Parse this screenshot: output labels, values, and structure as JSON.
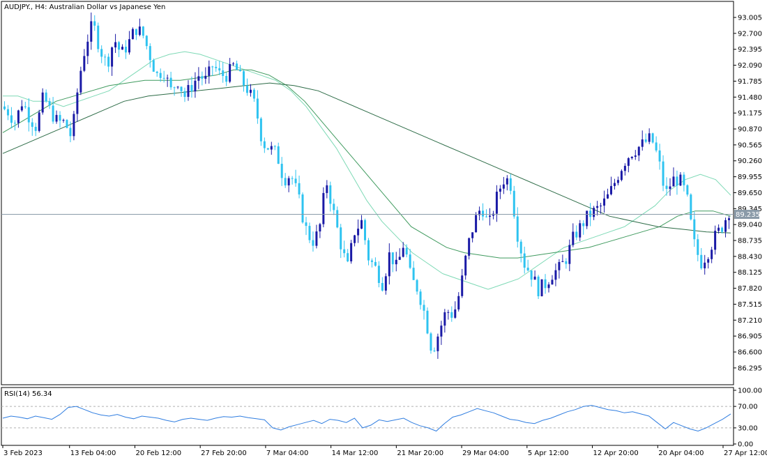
{
  "chart_data": [
    {
      "type": "candlestick",
      "title": "AUDJPY., H4:  Australian Dollar vs Japanese Yen",
      "ylim": [
        86.0,
        93.1
      ],
      "y_ticks": [
        "93.005",
        "92.700",
        "92.395",
        "92.090",
        "91.785",
        "91.480",
        "91.175",
        "90.870",
        "90.565",
        "90.260",
        "89.955",
        "89.650",
        "89.345",
        "89.040",
        "88.735",
        "88.430",
        "88.125",
        "87.820",
        "87.515",
        "87.210",
        "86.905",
        "86.600",
        "86.295"
      ],
      "current_price": "89.235",
      "x_ticks": [
        "3 Feb 2023",
        "13 Feb 04:00",
        "20 Feb 12:00",
        "27 Feb 20:00",
        "7 Mar 04:00",
        "14 Mar 12:00",
        "21 Mar 20:00",
        "29 Mar 04:00",
        "5 Apr 12:00",
        "12 Apr 20:00",
        "20 Apr 04:00",
        "27 Apr 12:00"
      ],
      "close_path": [
        91.3,
        91.2,
        91.0,
        91.4,
        91.1,
        90.9,
        91.5,
        91.2,
        91.0,
        91.0,
        90.7,
        91.8,
        92.5,
        92.9,
        92.4,
        92.1,
        92.6,
        92.3,
        92.5,
        92.8,
        92.7,
        92.3,
        91.9,
        92.0,
        91.6,
        91.8,
        91.5,
        91.7,
        91.9,
        91.8,
        92.1,
        91.9,
        91.9,
        92.1,
        91.8,
        91.6,
        91.3,
        90.6,
        90.5,
        90.4,
        89.9,
        90.0,
        89.6,
        89.0,
        88.7,
        88.9,
        89.9,
        89.3,
        88.7,
        88.2,
        88.9,
        89.1,
        88.4,
        88.2,
        87.9,
        88.5,
        88.2,
        88.7,
        88.0,
        87.8,
        87.3,
        86.6,
        87.0,
        87.4,
        87.3,
        87.8,
        88.6,
        89.1,
        89.4,
        89.0,
        89.5,
        89.9,
        89.9,
        88.9,
        88.3,
        88.1,
        87.8,
        87.9,
        88.1,
        88.2,
        88.4,
        88.8,
        89.0,
        89.2,
        89.3,
        89.4,
        89.6,
        89.9,
        90.2,
        90.4,
        90.5,
        90.6,
        90.7,
        90.3,
        89.6,
        89.9,
        89.9,
        89.6,
        88.7,
        88.3,
        88.5,
        88.8,
        89.0,
        89.3
      ],
      "series": [
        {
          "name": "",
          "color": "#7dd9b5",
          "values": [
            91.5,
            91.5,
            91.4,
            91.4,
            91.3,
            91.4,
            91.5,
            91.6,
            91.8,
            92.0,
            92.2,
            92.3,
            92.35,
            92.3,
            92.2,
            92.1,
            92.0,
            91.9,
            91.8,
            91.6,
            91.3,
            90.9,
            90.5,
            90.0,
            89.5,
            89.1,
            88.8,
            88.5,
            88.3,
            88.1,
            88.0,
            87.9,
            87.8,
            87.9,
            88.0,
            88.2,
            88.4,
            88.6,
            88.7,
            88.8,
            88.9,
            89.0,
            89.2,
            89.4,
            89.7,
            89.9,
            90.0,
            89.9,
            89.6
          ]
        },
        {
          "name": "",
          "color": "#3f9a5e",
          "values": [
            90.8,
            91.0,
            91.2,
            91.4,
            91.5,
            91.6,
            91.7,
            91.75,
            91.8,
            91.8,
            91.8,
            91.85,
            91.9,
            92.0,
            92.0,
            91.9,
            91.7,
            91.4,
            91.0,
            90.6,
            90.2,
            89.8,
            89.4,
            89.0,
            88.8,
            88.6,
            88.5,
            88.45,
            88.4,
            88.4,
            88.45,
            88.5,
            88.55,
            88.6,
            88.7,
            88.8,
            88.9,
            89.0,
            89.2,
            89.3,
            89.3,
            89.2
          ]
        },
        {
          "name": "",
          "color": "#2c6b46",
          "values": [
            90.4,
            90.6,
            90.8,
            91.0,
            91.2,
            91.4,
            91.5,
            91.55,
            91.6,
            91.65,
            91.7,
            91.75,
            91.7,
            91.6,
            91.4,
            91.2,
            91.0,
            90.8,
            90.6,
            90.4,
            90.2,
            90.0,
            89.8,
            89.6,
            89.4,
            89.2,
            89.1,
            89.0,
            88.95,
            88.9,
            88.88
          ]
        }
      ]
    },
    {
      "type": "line",
      "title": "RSI(14) 56.34",
      "ylim": [
        0,
        100
      ],
      "y_ticks": [
        "100.00",
        "70.00",
        "30.00",
        "0.00"
      ],
      "levels": [
        70,
        30
      ],
      "values": [
        48,
        52,
        50,
        47,
        52,
        49,
        46,
        55,
        68,
        70,
        64,
        58,
        54,
        52,
        55,
        50,
        47,
        52,
        50,
        48,
        44,
        41,
        46,
        48,
        46,
        44,
        48,
        51,
        50,
        52,
        49,
        47,
        45,
        30,
        26,
        32,
        36,
        40,
        44,
        38,
        46,
        44,
        40,
        48,
        30,
        35,
        45,
        42,
        45,
        48,
        40,
        34,
        30,
        24,
        38,
        50,
        54,
        60,
        66,
        62,
        58,
        52,
        46,
        44,
        40,
        38,
        44,
        48,
        54,
        60,
        64,
        70,
        72,
        68,
        64,
        62,
        58,
        60,
        56,
        52,
        40,
        28,
        40,
        34,
        28,
        24,
        30,
        38,
        46,
        56
      ]
    }
  ]
}
